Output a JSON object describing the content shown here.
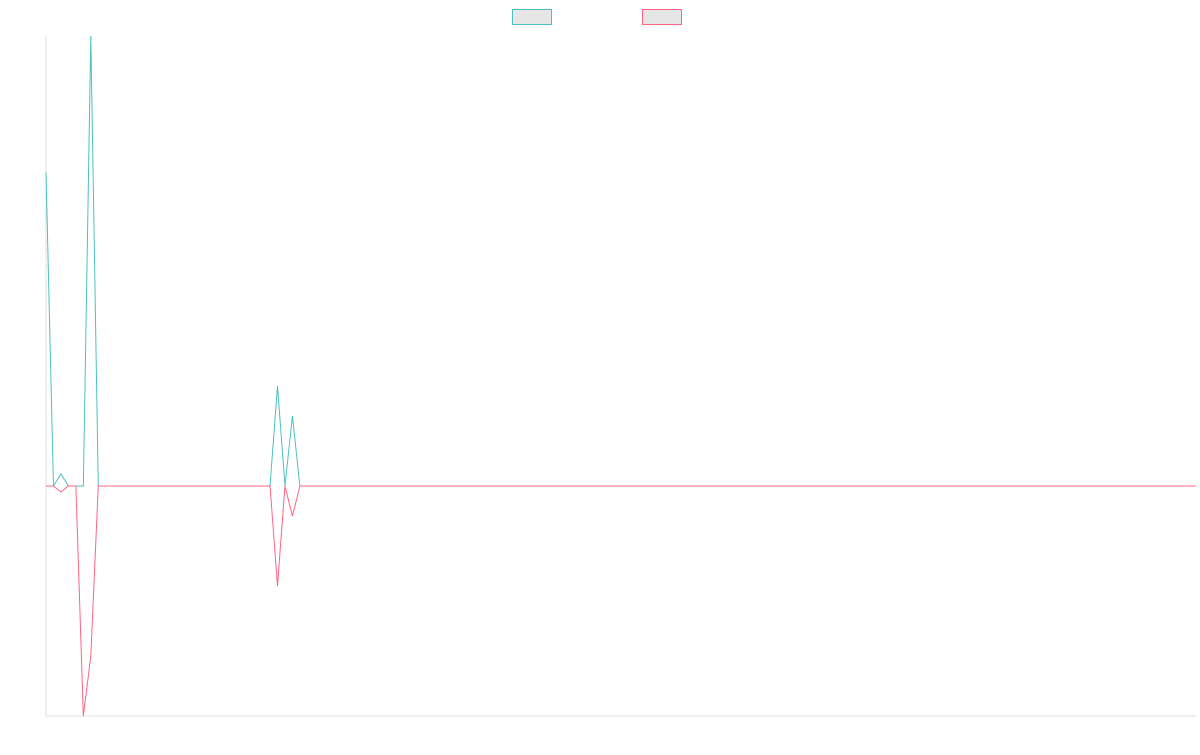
{
  "chart_data": {
    "type": "line",
    "title": "",
    "xlabel": "",
    "ylabel": "",
    "ylim": [
      -230,
      450
    ],
    "grid": false,
    "legend_position": "top-center",
    "x": [
      0,
      1,
      2,
      3,
      4,
      5,
      6,
      7,
      8,
      9,
      10,
      11,
      12,
      13,
      14,
      15,
      16,
      17,
      18,
      19,
      20,
      21,
      22,
      23,
      24,
      25,
      26,
      27,
      28,
      29,
      30,
      31,
      32,
      33,
      34,
      35,
      36,
      37,
      38,
      39,
      40,
      41,
      42,
      43,
      44,
      45,
      46,
      47,
      48,
      49,
      50,
      51,
      52,
      53,
      54,
      55,
      56,
      57,
      58,
      59,
      60,
      61,
      62,
      63,
      64,
      65,
      66,
      67,
      68,
      69,
      70,
      71,
      72,
      73,
      74,
      75,
      76,
      77,
      78,
      79,
      80,
      81,
      82,
      83,
      84,
      85,
      86,
      87,
      88,
      89,
      90,
      91,
      92,
      93,
      94,
      95,
      96,
      97,
      98,
      99,
      100,
      101,
      102,
      103,
      104,
      105,
      106,
      107,
      108,
      109,
      110,
      111,
      112,
      113,
      114,
      115,
      116,
      117,
      118,
      119,
      120,
      121,
      122,
      123,
      124,
      125,
      126,
      127,
      128,
      129,
      130,
      131,
      132,
      133,
      134,
      135,
      136,
      137,
      138,
      139,
      140,
      141,
      142,
      143,
      144,
      145,
      146,
      147,
      148,
      149,
      150,
      151,
      152,
      153,
      154
    ],
    "series": [
      {
        "name": "",
        "color": "#4bc0c0",
        "values": [
          314,
          0,
          12,
          0,
          0,
          0,
          450,
          0,
          0,
          0,
          0,
          0,
          0,
          0,
          0,
          0,
          0,
          0,
          0,
          0,
          0,
          0,
          0,
          0,
          0,
          0,
          0,
          0,
          0,
          0,
          0,
          100,
          0,
          70,
          0,
          0,
          0,
          0,
          0,
          0,
          0,
          0,
          0,
          0,
          0,
          0,
          0,
          0,
          0,
          0,
          0,
          0,
          0,
          0,
          0,
          0,
          0,
          0,
          0,
          0,
          0,
          0,
          0,
          0,
          0,
          0,
          0,
          0,
          0,
          0,
          0,
          0,
          0,
          0,
          0,
          0,
          0,
          0,
          0,
          0,
          0,
          0,
          0,
          0,
          0,
          0,
          0,
          0,
          0,
          0,
          0,
          0,
          0,
          0,
          0,
          0,
          0,
          0,
          0,
          0,
          0,
          0,
          0,
          0,
          0,
          0,
          0,
          0,
          0,
          0,
          0,
          0,
          0,
          0,
          0,
          0,
          0,
          0,
          0,
          0,
          0,
          0,
          0,
          0,
          0,
          0,
          0,
          0,
          0,
          0,
          0,
          0,
          0,
          0,
          0,
          0,
          0,
          0,
          0,
          0,
          0,
          0,
          0,
          0,
          0,
          0,
          0,
          0,
          0,
          0,
          0,
          0,
          0,
          0,
          0
        ]
      },
      {
        "name": "",
        "color": "#ff6384",
        "values": [
          0,
          0,
          -6,
          0,
          0,
          -230,
          -170,
          0,
          0,
          0,
          0,
          0,
          0,
          0,
          0,
          0,
          0,
          0,
          0,
          0,
          0,
          0,
          0,
          0,
          0,
          0,
          0,
          0,
          0,
          0,
          0,
          -100,
          0,
          -30,
          0,
          0,
          0,
          0,
          0,
          0,
          0,
          0,
          0,
          0,
          0,
          0,
          0,
          0,
          0,
          0,
          0,
          0,
          0,
          0,
          0,
          0,
          0,
          0,
          0,
          0,
          0,
          0,
          0,
          0,
          0,
          0,
          0,
          0,
          0,
          0,
          0,
          0,
          0,
          0,
          0,
          0,
          0,
          0,
          0,
          0,
          0,
          0,
          0,
          0,
          0,
          0,
          0,
          0,
          0,
          0,
          0,
          0,
          0,
          0,
          0,
          0,
          0,
          0,
          0,
          0,
          0,
          0,
          0,
          0,
          0,
          0,
          0,
          0,
          0,
          0,
          0,
          0,
          0,
          0,
          0,
          0,
          0,
          0,
          0,
          0,
          0,
          0,
          0,
          0,
          0,
          0,
          0,
          0,
          0,
          0,
          0,
          0,
          0,
          0,
          0,
          0,
          0,
          0,
          0,
          0,
          0,
          0,
          0,
          0,
          0,
          0,
          0,
          0,
          0,
          0,
          0,
          0,
          0,
          0,
          0
        ]
      }
    ]
  }
}
